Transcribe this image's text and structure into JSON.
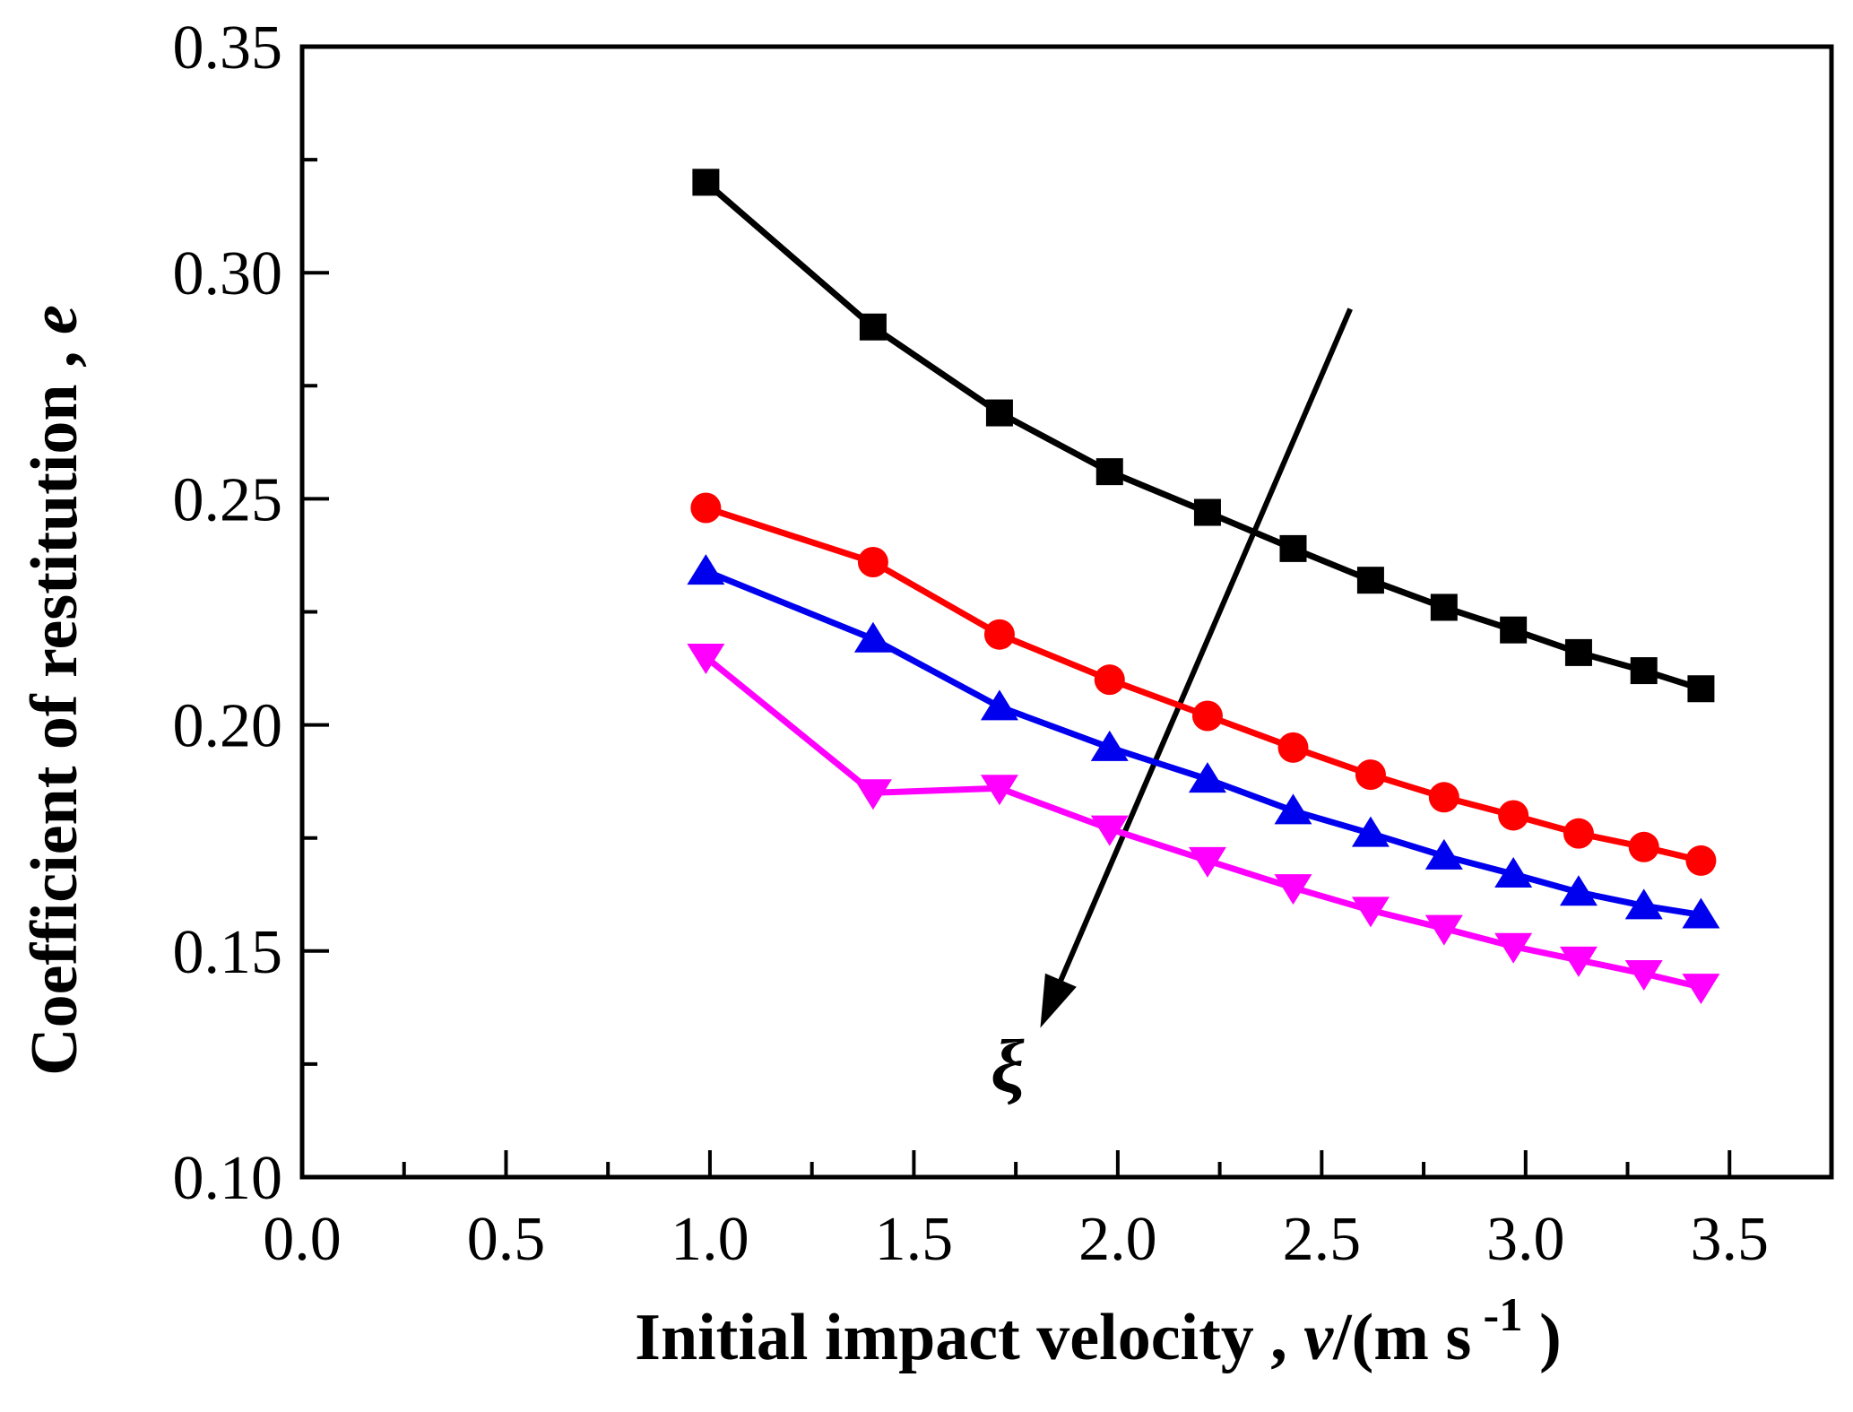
{
  "chart_data": {
    "type": "line",
    "title": "",
    "xlabel_parts": [
      {
        "t": "Initial impact velocity , ",
        "style": "bold"
      },
      {
        "t": "v",
        "style": "bolditalic"
      },
      {
        "t": "/(m s",
        "style": "bold"
      },
      {
        "t": " -1",
        "style": "boldsup"
      },
      {
        "t": " )",
        "style": "bold"
      }
    ],
    "ylabel_parts": [
      {
        "t": "Coefficient of restitution , ",
        "style": "bold"
      },
      {
        "t": "e",
        "style": "bolditalic"
      }
    ],
    "xlim": [
      0.0,
      3.75
    ],
    "ylim": [
      0.1,
      0.35
    ],
    "grid": false,
    "legend": "none",
    "x": [
      0.99,
      1.4,
      1.71,
      1.98,
      2.22,
      2.43,
      2.62,
      2.8,
      2.97,
      3.13,
      3.29,
      3.43
    ],
    "series": [
      {
        "name": "black-squares",
        "marker": "square",
        "color": "#000000",
        "values": [
          0.32,
          0.288,
          0.269,
          0.256,
          0.247,
          0.239,
          0.232,
          0.226,
          0.221,
          0.216,
          0.212,
          0.208
        ]
      },
      {
        "name": "red-circles",
        "marker": "circle",
        "color": "#ff0000",
        "values": [
          0.248,
          0.236,
          0.22,
          0.21,
          0.202,
          0.195,
          0.189,
          0.184,
          0.18,
          0.176,
          0.173,
          0.17
        ]
      },
      {
        "name": "blue-triangles-up",
        "marker": "triangle-up",
        "color": "#0000ee",
        "values": [
          0.234,
          0.219,
          0.204,
          0.195,
          0.188,
          0.181,
          0.176,
          0.171,
          0.167,
          0.163,
          0.16,
          0.158
        ]
      },
      {
        "name": "magenta-triangles-down",
        "marker": "triangle-down",
        "color": "#ff00ff",
        "values": [
          0.215,
          0.185,
          0.186,
          0.177,
          0.17,
          0.164,
          0.159,
          0.155,
          0.151,
          0.148,
          0.145,
          0.142
        ]
      }
    ],
    "xticks": {
      "values": [
        0.0,
        0.5,
        1.0,
        1.5,
        2.0,
        2.5,
        3.0,
        3.5
      ],
      "labels": [
        "0.0",
        "0.5",
        "1.0",
        "1.5",
        "2.0",
        "2.5",
        "3.0",
        "3.5"
      ],
      "minor": [
        0.25,
        0.75,
        1.25,
        1.75,
        2.25,
        2.75,
        3.25
      ]
    },
    "yticks": {
      "values": [
        0.1,
        0.15,
        0.2,
        0.25,
        0.3,
        0.35
      ],
      "labels": [
        "0.10",
        "0.15",
        "0.20",
        "0.25",
        "0.30",
        "0.35"
      ],
      "minor": [
        0.125,
        0.175,
        0.225,
        0.275,
        0.325
      ]
    },
    "annotation": {
      "label": "ξ",
      "arrow_from": {
        "x": 2.57,
        "y": 0.292
      },
      "arrow_to": {
        "x": 1.81,
        "y": 0.133
      },
      "label_pos": {
        "x": 1.73,
        "y": 0.119
      }
    }
  }
}
